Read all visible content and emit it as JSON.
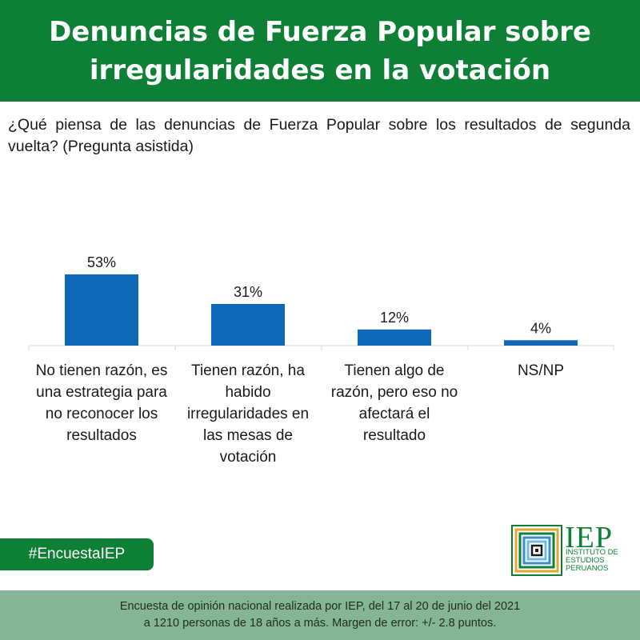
{
  "header": {
    "title": "Denuncias de Fuerza Popular sobre irregularidades en la votación"
  },
  "question": "¿Qué piensa de las denuncias de Fuerza Popular sobre los resultados de segunda vuelta? (Pregunta asistida)",
  "chart_data": {
    "type": "bar",
    "categories": [
      "No tienen razón, es una estrategia para no reconocer los resultados",
      "Tienen razón, ha habido irregularidades en las mesas de votación",
      "Tienen algo de razón, pero eso no afectará el resultado",
      "NS/NP"
    ],
    "values": [
      53,
      31,
      12,
      4
    ],
    "value_labels": [
      "53%",
      "31%",
      "12%",
      "4%"
    ],
    "unit": "%",
    "ylim": [
      0,
      60
    ],
    "grid": false,
    "bar_color": "#1068b8"
  },
  "hashtag": "#EncuestaIEP",
  "logo": {
    "abbr": "IEP",
    "name": "INSTITUTO DE ESTUDIOS PERUANOS"
  },
  "footer": {
    "line1": "Encuesta de opinión nacional realizada por IEP, del 17 al 20 de junio del 2021",
    "line2": "a 1210 personas de 18 años a más. Margen de error: +/- 2.8 puntos."
  },
  "colors": {
    "brand_green": "#0e8036",
    "footer_green": "#84b594"
  }
}
